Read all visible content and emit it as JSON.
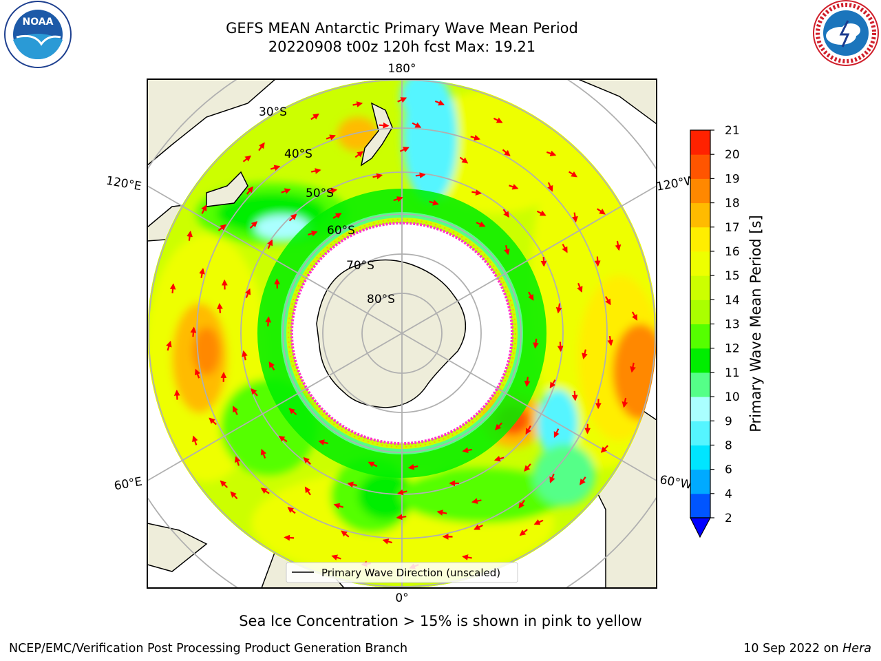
{
  "header": {
    "title_line1": "GEFS MEAN Antarctic Primary Wave Mean Period",
    "title_line2": "20220908 t00z 120h fcst   Max: 19.21"
  },
  "logos": {
    "noaa": {
      "text": "NOAA",
      "ring_text": "NATIONAL OCEANIC AND ATMOSPHERIC ADMINISTRATION · U.S. DEPARTMENT OF COMMERCE"
    },
    "nws": {
      "ring_text": "NATIONAL WEATHER SERVICE"
    }
  },
  "map": {
    "projection": "south-polar-stereographic",
    "longitude_labels": {
      "top": "180°",
      "bottom": "0°",
      "left_upper": "120°E",
      "left_lower": "60°E",
      "right_upper": "120°W",
      "right_lower": "60°W"
    },
    "latitude_labels": [
      "30°S",
      "40°S",
      "50°S",
      "60°S",
      "70°S",
      "80°S"
    ],
    "legend_label": "Primary Wave Direction (unscaled)",
    "colors": {
      "land": "#eeedda",
      "gridline": "#b0b0b0",
      "arrow": "#ff0000",
      "sea_ice_edge": "#ff33cc"
    }
  },
  "colorbar": {
    "label": "Primary Wave Mean Period [s]",
    "ticks": [
      "2",
      "4",
      "6",
      "8",
      "9",
      "10",
      "11",
      "12",
      "13",
      "14",
      "15",
      "16",
      "17",
      "18",
      "19",
      "20",
      "21"
    ],
    "colors": [
      "#0055ff",
      "#00aaff",
      "#00e5ff",
      "#55f5ff",
      "#aaffff",
      "#55ff88",
      "#00ee00",
      "#55ff00",
      "#aaff00",
      "#ccff00",
      "#eeff00",
      "#ffee00",
      "#ffbb00",
      "#ff8800",
      "#ff5500",
      "#ff2200",
      "#ff0000"
    ],
    "under_color": "#0000ff"
  },
  "footer": {
    "note": "Sea Ice Concentration > 15% is shown in pink to yellow",
    "credit": "NCEP/EMC/Verification Post Processing Product Generation Branch",
    "date": "10 Sep 2022 on",
    "machine": "Hera"
  }
}
